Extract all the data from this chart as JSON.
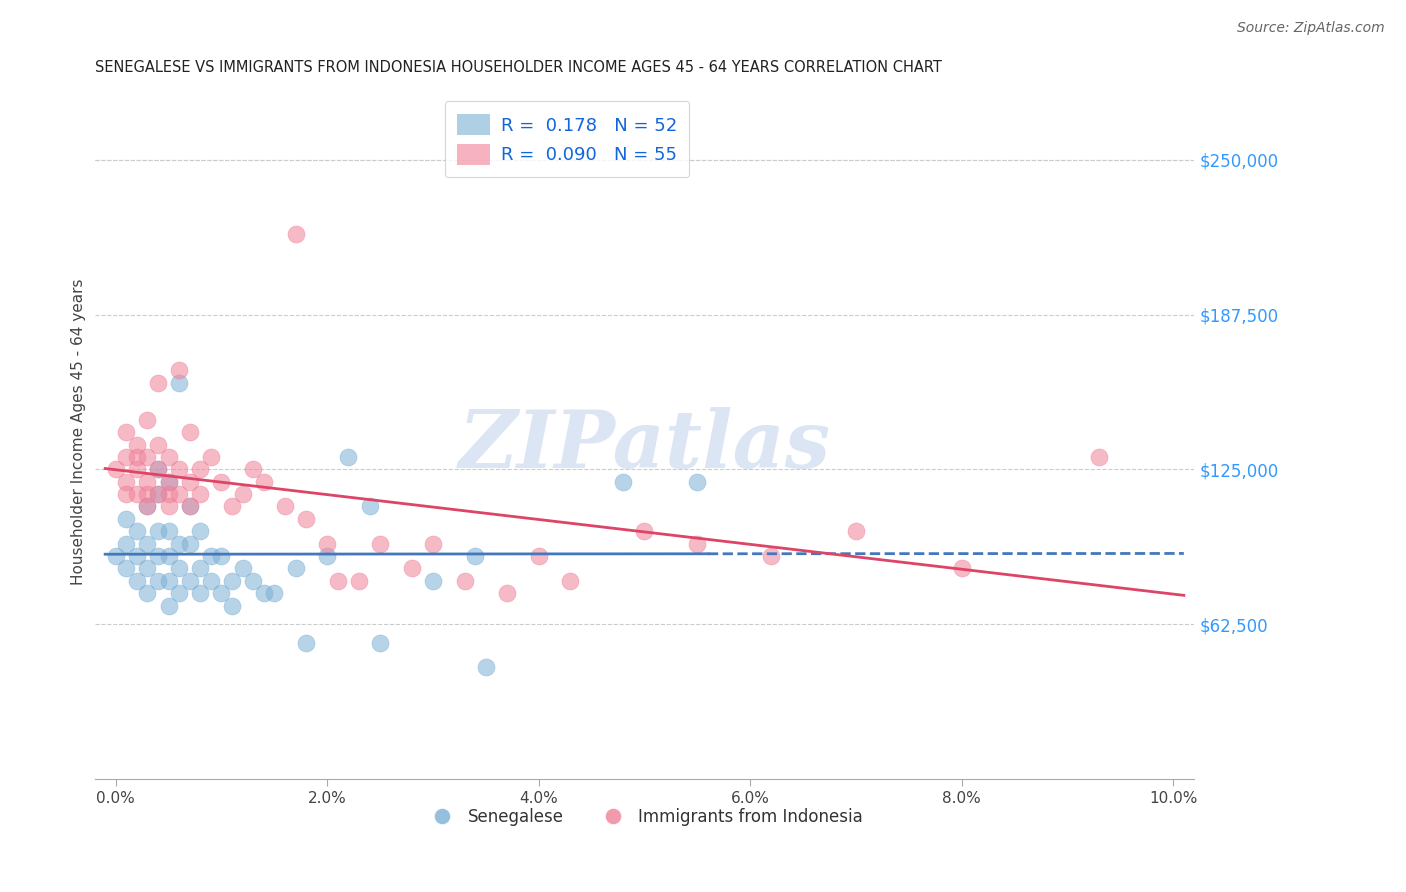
{
  "title": "SENEGALESE VS IMMIGRANTS FROM INDONESIA HOUSEHOLDER INCOME AGES 45 - 64 YEARS CORRELATION CHART",
  "source": "Source: ZipAtlas.com",
  "xlabel_ticks": [
    "0.0%",
    "2.0%",
    "4.0%",
    "6.0%",
    "8.0%",
    "10.0%"
  ],
  "xlabel_vals": [
    0.0,
    0.02,
    0.04,
    0.06,
    0.08,
    0.1
  ],
  "ylabel_label": "Householder Income Ages 45 - 64 years",
  "ylabel_ticks": [
    "$62,500",
    "$125,000",
    "$187,500",
    "$250,000"
  ],
  "ylabel_vals": [
    62500,
    125000,
    187500,
    250000
  ],
  "ylim": [
    0,
    280000
  ],
  "xlim": [
    -0.002,
    0.102
  ],
  "senegalese_color": "#7bafd4",
  "indonesia_color": "#f08098",
  "regression_senegalese_color": "#4477bb",
  "regression_indonesia_color": "#dd4466",
  "background_color": "#ffffff",
  "grid_color": "#cccccc",
  "senegalese_x": [
    0.0,
    0.001,
    0.001,
    0.001,
    0.002,
    0.002,
    0.002,
    0.003,
    0.003,
    0.003,
    0.003,
    0.004,
    0.004,
    0.004,
    0.004,
    0.004,
    0.005,
    0.005,
    0.005,
    0.005,
    0.005,
    0.006,
    0.006,
    0.006,
    0.006,
    0.007,
    0.007,
    0.007,
    0.008,
    0.008,
    0.008,
    0.009,
    0.009,
    0.01,
    0.01,
    0.011,
    0.011,
    0.012,
    0.013,
    0.014,
    0.015,
    0.017,
    0.018,
    0.02,
    0.022,
    0.024,
    0.025,
    0.03,
    0.035,
    0.048,
    0.055,
    0.034
  ],
  "senegalese_y": [
    90000,
    85000,
    95000,
    105000,
    80000,
    90000,
    100000,
    75000,
    85000,
    95000,
    110000,
    80000,
    90000,
    100000,
    115000,
    125000,
    70000,
    80000,
    90000,
    100000,
    120000,
    75000,
    85000,
    95000,
    160000,
    80000,
    95000,
    110000,
    75000,
    85000,
    100000,
    80000,
    90000,
    75000,
    90000,
    70000,
    80000,
    85000,
    80000,
    75000,
    75000,
    85000,
    55000,
    90000,
    130000,
    110000,
    55000,
    80000,
    45000,
    120000,
    120000,
    90000
  ],
  "indonesia_x": [
    0.0,
    0.001,
    0.001,
    0.001,
    0.001,
    0.002,
    0.002,
    0.002,
    0.002,
    0.003,
    0.003,
    0.003,
    0.003,
    0.003,
    0.004,
    0.004,
    0.004,
    0.004,
    0.005,
    0.005,
    0.005,
    0.005,
    0.006,
    0.006,
    0.006,
    0.007,
    0.007,
    0.007,
    0.008,
    0.008,
    0.009,
    0.01,
    0.011,
    0.012,
    0.013,
    0.014,
    0.016,
    0.017,
    0.018,
    0.02,
    0.021,
    0.023,
    0.025,
    0.028,
    0.03,
    0.033,
    0.037,
    0.04,
    0.043,
    0.05,
    0.055,
    0.062,
    0.07,
    0.08,
    0.093
  ],
  "indonesia_y": [
    125000,
    120000,
    130000,
    140000,
    115000,
    125000,
    135000,
    115000,
    130000,
    120000,
    110000,
    130000,
    115000,
    145000,
    125000,
    115000,
    135000,
    160000,
    120000,
    110000,
    130000,
    115000,
    125000,
    115000,
    165000,
    120000,
    110000,
    140000,
    125000,
    115000,
    130000,
    120000,
    110000,
    115000,
    125000,
    120000,
    110000,
    220000,
    105000,
    95000,
    80000,
    80000,
    95000,
    85000,
    95000,
    80000,
    75000,
    90000,
    80000,
    100000,
    95000,
    90000,
    100000,
    85000,
    130000
  ],
  "watermark": "ZIPatlas",
  "R_senegalese": 0.178,
  "N_senegalese": 52,
  "R_indonesia": 0.09,
  "N_indonesia": 55,
  "legend_label_color": "#1166dd",
  "bottom_legend_color": "#333333"
}
